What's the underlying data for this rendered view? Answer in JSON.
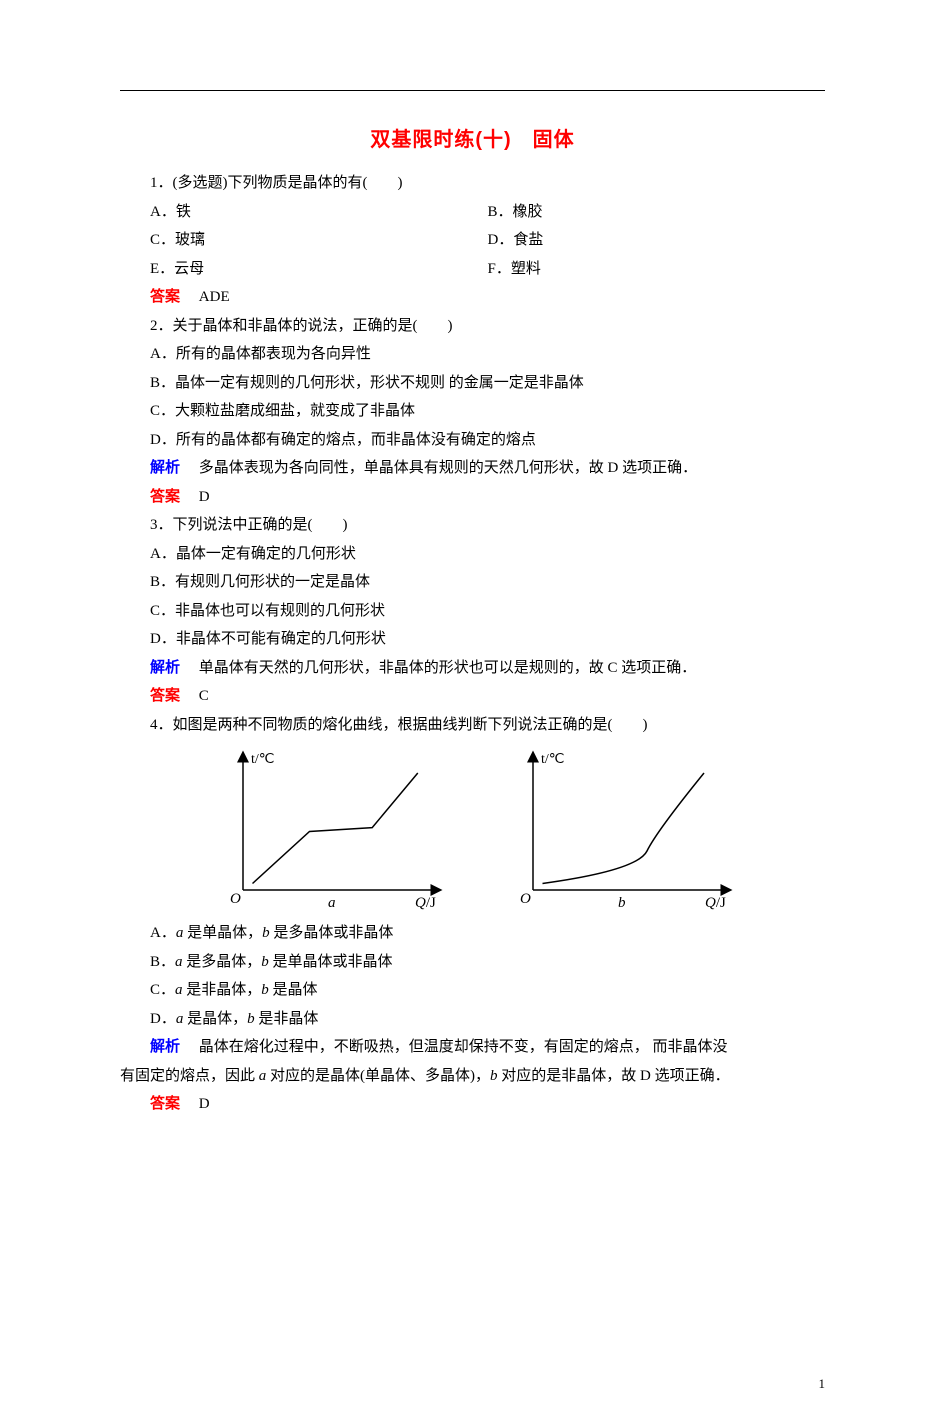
{
  "colors": {
    "title": "#ff0000",
    "answer_label": "#ff0000",
    "explain_label": "#0000ff",
    "text": "#000000",
    "background": "#ffffff",
    "axis": "#000000"
  },
  "typography": {
    "body_fontsize_pt": 11,
    "title_fontsize_pt": 15,
    "body_family": "SimSun",
    "title_family": "SimHei"
  },
  "title": "双基限时练(十)　固体",
  "q1": {
    "stem": "1．(多选题)下列物质是晶体的有(　　)",
    "opts": {
      "A": "A．铁",
      "B": "B．橡胶",
      "C": "C．玻璃",
      "D": "D．食盐",
      "E": "E．云母",
      "F": "F．塑料"
    },
    "answer_label": "答案",
    "answer": "ADE"
  },
  "q2": {
    "stem": "2．关于晶体和非晶体的说法，正确的是(　　)",
    "opts": {
      "A": "A．所有的晶体都表现为各向异性",
      "B": "B．晶体一定有规则的几何形状，形状不规则 的金属一定是非晶体",
      "C": "C．大颗粒盐磨成细盐，就变成了非晶体",
      "D": "D．所有的晶体都有确定的熔点，而非晶体没有确定的熔点"
    },
    "explain_label": "解析",
    "explain": "多晶体表现为各向同性，单晶体具有规则的天然几何形状，故 D 选项正确．",
    "answer_label": "答案",
    "answer": "D"
  },
  "q3": {
    "stem": "3．下列说法中正确的是(　　)",
    "opts": {
      "A": "A．晶体一定有确定的几何形状",
      "B": "B．有规则几何形状的一定是晶体",
      "C": "C．非晶体也可以有规则的几何形状",
      "D": "D．非晶体不可能有确定的几何形状"
    },
    "explain_label": "解析",
    "explain": "单晶体有天然的几何形状，非晶体的形状也可以是规则的，故 C 选项正确．",
    "answer_label": "答案",
    "answer": "C"
  },
  "q4": {
    "stem": "4．如图是两种不同物质的熔化曲线，根据曲线判断下列说法正确的是(　　)",
    "charts": {
      "a": {
        "type": "line",
        "y_label": "t/℃",
        "x_label_var": "Q",
        "x_label_unit": "/J",
        "caption_var": "a",
        "axis_color": "#000000",
        "line_color": "#000000",
        "line_width": 1.5,
        "xlim": [
          0,
          100
        ],
        "ylim": [
          0,
          100
        ],
        "points": [
          [
            5,
            5
          ],
          [
            35,
            45
          ],
          [
            68,
            48
          ],
          [
            92,
            90
          ]
        ]
      },
      "b": {
        "type": "line",
        "y_label": "t/℃",
        "x_label_var": "Q",
        "x_label_unit": "/J",
        "caption_var": "b",
        "axis_color": "#000000",
        "line_color": "#000000",
        "line_width": 1.5,
        "xlim": [
          0,
          100
        ],
        "ylim": [
          0,
          100
        ],
        "points_curve": {
          "start": [
            5,
            5
          ],
          "control": [
            55,
            15
          ],
          "mid": [
            60,
            30
          ],
          "end": [
            90,
            90
          ]
        }
      }
    },
    "opts": {
      "A_pre": "A．",
      "A_a": "a",
      "A_mid1": " 是单晶体，",
      "A_b": "b",
      "A_post": " 是多晶体或非晶体",
      "B_pre": "B．",
      "B_a": "a",
      "B_mid1": " 是多晶体，",
      "B_b": "b",
      "B_post": " 是单晶体或非晶体",
      "C_pre": "C．",
      "C_a": "a",
      "C_mid1": " 是非晶体，",
      "C_b": "b",
      "C_post": " 是晶体",
      "D_pre": "D．",
      "D_a": "a",
      "D_mid1": " 是晶体，",
      "D_b": "b",
      "D_post": " 是非晶体"
    },
    "explain_label": "解析",
    "explain_line1_pre": "晶体在熔化过程中，不断吸热，但温度却保持不变，有固定的熔点， 而非晶体没",
    "explain_line2_pre": "有固定的熔点，因此 ",
    "explain_line2_a": "a",
    "explain_line2_mid": " 对应的是晶体(单晶体、多晶体)，",
    "explain_line2_b": "b",
    "explain_line2_post": " 对应的是非晶体，故 D 选项正确．",
    "answer_label": "答案",
    "answer": "D"
  },
  "page_number": "1"
}
